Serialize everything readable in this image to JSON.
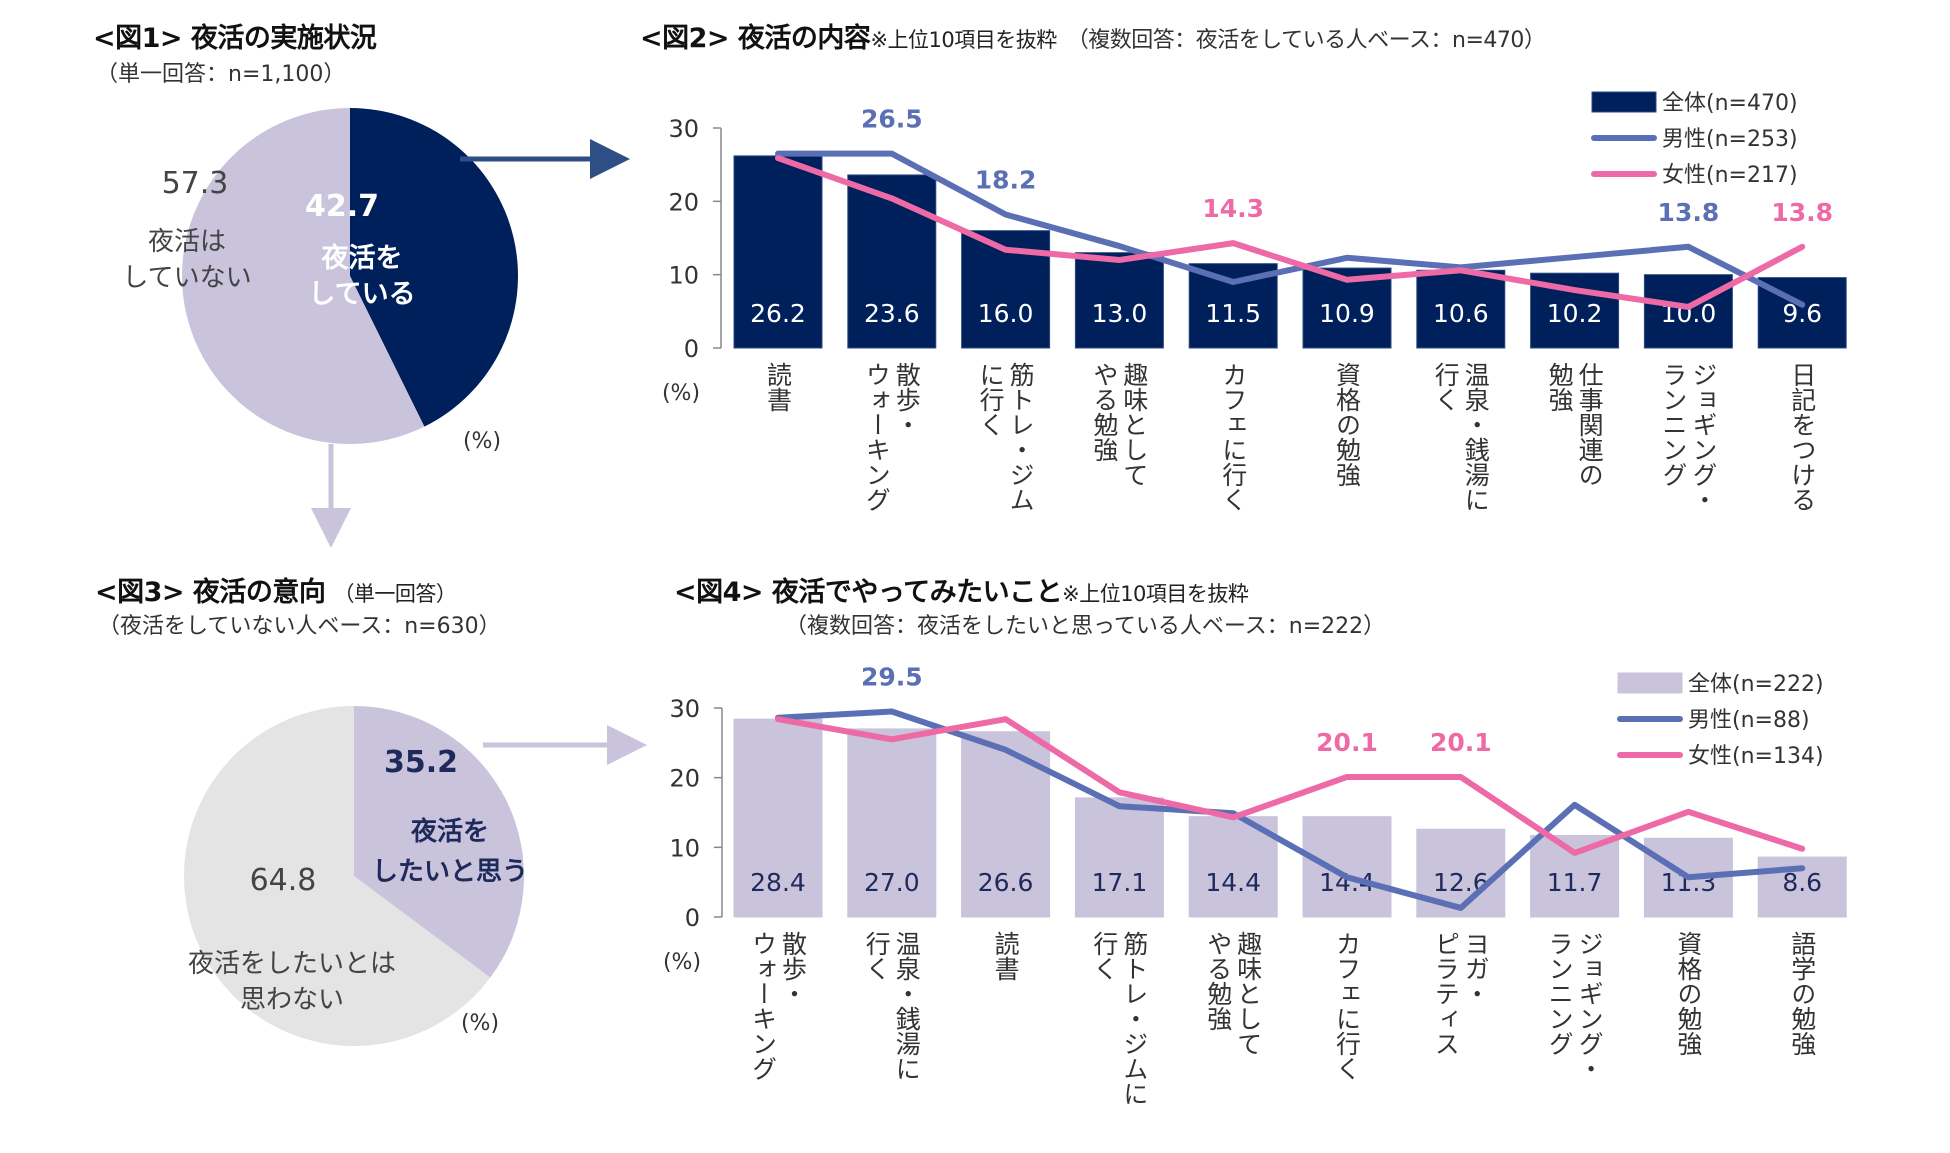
{
  "fig1": {
    "title": "<図1> 夜活の実施状況",
    "subtitle": "（単一回答：n=1,100）",
    "unit": "(%)"
  },
  "fig2": {
    "title": "<図2> 夜活の内容",
    "note": "※上位10項目を抜粋",
    "subtitle": "（複数回答：夜活をしている人ベース：n=470）",
    "unit": "(%)"
  },
  "fig3": {
    "title": "<図3> 夜活の意向",
    "title_note": "（単一回答）",
    "subtitle": "（夜活をしていない人ベース：n=630）",
    "unit": "(%)"
  },
  "fig4": {
    "title": "<図4> 夜活でやってみたいこと",
    "note": "※上位10項目を抜粋",
    "subtitle": "（複数回答：夜活をしたいと思っている人ベース：n=222）",
    "unit": "(%)"
  },
  "colors": {
    "navy": "#00205b",
    "lavender": "#c9c3dc",
    "light_gray": "#e4e4e4",
    "male": "#5b6fb5",
    "female": "#ee6aa7",
    "arrow_navy": "#2f4e85",
    "arrow_lavender": "#c9c3dc"
  },
  "chart_data": [
    {
      "id": "fig1",
      "type": "pie",
      "title": "<図1> 夜活の実施状況",
      "slices": [
        {
          "label": "夜活をしている",
          "label_lines": [
            "夜活を",
            "している"
          ],
          "value": 42.7
        },
        {
          "label": "夜活はしていない",
          "label_lines": [
            "夜活は",
            "していない"
          ],
          "value": 57.3
        }
      ],
      "unit": "%"
    },
    {
      "id": "fig2",
      "type": "bar",
      "title": "<図2> 夜活の内容",
      "ylabel": "(%)",
      "ylim": [
        0,
        30
      ],
      "yticks": [
        0,
        10,
        20,
        30
      ],
      "categories": [
        "読書",
        "散歩・ウォーキング",
        "筋トレ・ジムに行く",
        "趣味としてやる勉強",
        "カフェに行く",
        "資格の勉強",
        "温泉・銭湯に行く",
        "仕事関連の勉強",
        "ジョギング・ランニング",
        "日記をつける"
      ],
      "category_lines": [
        [
          "読書"
        ],
        [
          "散歩・",
          "ウォーキング"
        ],
        [
          "筋トレ・ジム",
          "に行く"
        ],
        [
          "趣味として",
          "やる勉強"
        ],
        [
          "カフェに行く"
        ],
        [
          "資格の勉強"
        ],
        [
          "温泉・銭湯に",
          "行く"
        ],
        [
          "仕事関連の",
          "勉強"
        ],
        [
          "ジョギング・",
          "ランニング"
        ],
        [
          "日記をつける"
        ]
      ],
      "series": [
        {
          "name": "全体(n=470)",
          "kind": "bar",
          "values": [
            26.2,
            23.6,
            16.0,
            13.0,
            11.5,
            10.9,
            10.6,
            10.2,
            10.0,
            9.6
          ]
        },
        {
          "name": "男性(n=253)",
          "kind": "line",
          "values": [
            26.5,
            26.5,
            18.2,
            13.9,
            9.0,
            12.3,
            11.0,
            12.4,
            13.8,
            5.9
          ]
        },
        {
          "name": "女性(n=217)",
          "kind": "line",
          "values": [
            25.9,
            20.4,
            13.4,
            12.0,
            14.3,
            9.3,
            10.6,
            7.9,
            5.6,
            13.8
          ]
        }
      ],
      "annotations": [
        {
          "series": 1,
          "index": 1,
          "text": "26.5"
        },
        {
          "series": 1,
          "index": 2,
          "text": "18.2"
        },
        {
          "series": 2,
          "index": 4,
          "text": "14.3"
        },
        {
          "series": 1,
          "index": 8,
          "text": "13.8"
        },
        {
          "series": 2,
          "index": 9,
          "text": "13.8"
        }
      ],
      "legend": "top-right"
    },
    {
      "id": "fig3",
      "type": "pie",
      "title": "<図3> 夜活の意向",
      "slices": [
        {
          "label": "夜活をしたいと思う",
          "label_lines": [
            "夜活を",
            "したいと思う"
          ],
          "value": 35.2
        },
        {
          "label": "夜活をしたいとは思わない",
          "label_lines": [
            "夜活をしたいとは",
            "思わない"
          ],
          "value": 64.8
        }
      ],
      "unit": "%"
    },
    {
      "id": "fig4",
      "type": "bar",
      "title": "<図4> 夜活でやってみたいこと",
      "ylabel": "(%)",
      "ylim": [
        0,
        30
      ],
      "yticks": [
        0,
        10,
        20,
        30
      ],
      "categories": [
        "散歩・ウォーキング",
        "温泉・銭湯に行く",
        "読書",
        "筋トレ・ジムに行く",
        "趣味としてやる勉強",
        "カフェに行く",
        "ヨガ・ピラティス",
        "ジョギング・ランニング",
        "資格の勉強",
        "語学の勉強"
      ],
      "category_lines": [
        [
          "散歩・",
          "ウォーキング"
        ],
        [
          "温泉・銭湯に",
          "行く"
        ],
        [
          "読書"
        ],
        [
          "筋トレ・ジムに",
          "行く"
        ],
        [
          "趣味として",
          "やる勉強"
        ],
        [
          "カフェに行く"
        ],
        [
          "ヨガ・",
          "ピラティス"
        ],
        [
          "ジョギング・",
          "ランニング"
        ],
        [
          "資格の勉強"
        ],
        [
          "語学の勉強"
        ]
      ],
      "series": [
        {
          "name": "全体(n=222)",
          "kind": "bar",
          "values": [
            28.4,
            27.0,
            26.6,
            17.1,
            14.4,
            14.4,
            12.6,
            11.7,
            11.3,
            8.6
          ]
        },
        {
          "name": "男性(n=88)",
          "kind": "line",
          "values": [
            28.6,
            29.5,
            24.0,
            15.9,
            14.9,
            5.7,
            1.3,
            16.1,
            5.7,
            7.0
          ]
        },
        {
          "name": "女性(n=134)",
          "kind": "line",
          "values": [
            28.4,
            25.5,
            28.4,
            17.9,
            14.3,
            20.1,
            20.1,
            9.2,
            15.1,
            9.8
          ]
        }
      ],
      "annotations": [
        {
          "series": 1,
          "index": 1,
          "text": "29.5"
        },
        {
          "series": 2,
          "index": 5,
          "text": "20.1"
        },
        {
          "series": 2,
          "index": 6,
          "text": "20.1"
        }
      ],
      "legend": "top-right"
    }
  ]
}
